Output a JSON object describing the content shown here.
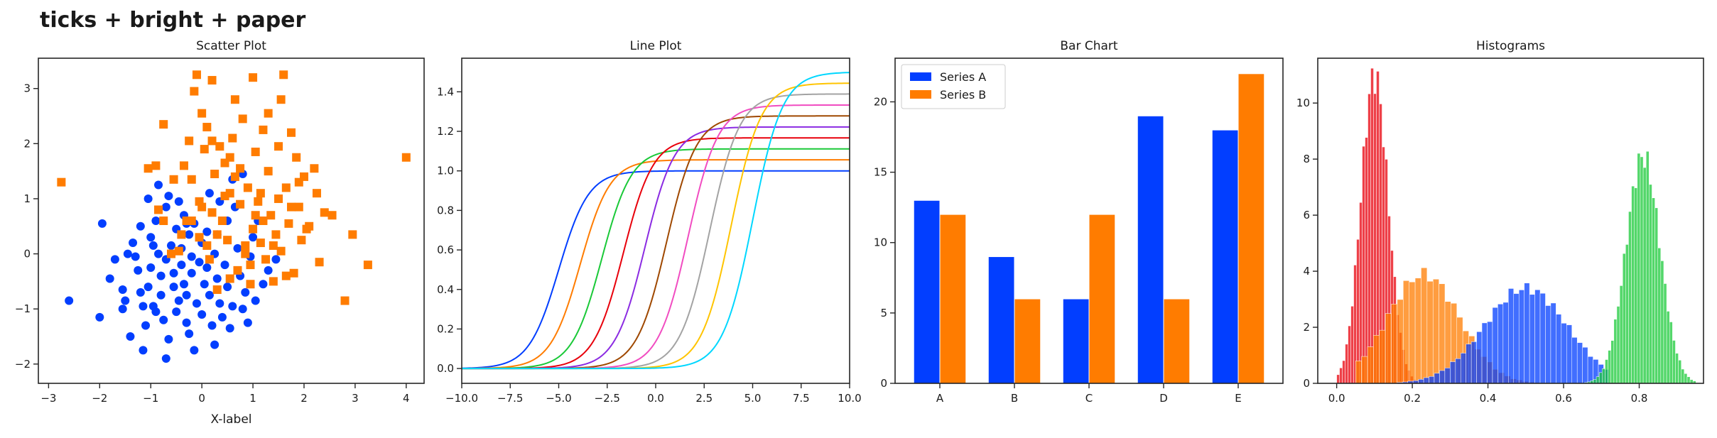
{
  "figure": {
    "suptitle": "ticks + bright + paper"
  },
  "colors": {
    "blue": "#023eff",
    "orange": "#ff7c00",
    "green": "#1ac938",
    "red": "#e8000b",
    "purple": "#8b2be2",
    "brown": "#9f4800",
    "pink": "#f14cc1",
    "gray": "#a3a3a3",
    "yellow": "#ffc400",
    "cyan": "#00d7ff"
  },
  "chart_data": [
    {
      "type": "scatter",
      "title": "Scatter Plot",
      "xlabel": "X-label",
      "ylabel": "",
      "xlim": [
        -3.2,
        4.35
      ],
      "ylim": [
        -2.35,
        3.55
      ],
      "xticks": [
        "−3",
        "−2",
        "−1",
        "0",
        "1",
        "2",
        "3",
        "4"
      ],
      "xtick_values": [
        -3,
        -2,
        -1,
        0,
        1,
        2,
        3,
        4
      ],
      "yticks": [
        "−2",
        "−1",
        "0",
        "1",
        "2",
        "3"
      ],
      "ytick_values": [
        -2,
        -1,
        0,
        1,
        2,
        3
      ],
      "series": [
        {
          "marker": "circle",
          "color": "#023eff",
          "points": [
            [
              -2.6,
              -0.85
            ],
            [
              -2.0,
              -1.15
            ],
            [
              -1.7,
              -0.1
            ],
            [
              -1.55,
              -0.65
            ],
            [
              -1.5,
              -0.85
            ],
            [
              -1.45,
              0.0
            ],
            [
              -1.4,
              -1.5
            ],
            [
              -1.35,
              0.2
            ],
            [
              -1.25,
              -0.3
            ],
            [
              -1.2,
              -0.7
            ],
            [
              -1.15,
              -1.75
            ],
            [
              -1.15,
              -0.95
            ],
            [
              -1.1,
              -1.3
            ],
            [
              -1.05,
              -0.6
            ],
            [
              -1.0,
              0.3
            ],
            [
              -1.0,
              -0.25
            ],
            [
              -0.95,
              -0.95
            ],
            [
              -0.9,
              -1.05
            ],
            [
              -0.9,
              0.6
            ],
            [
              -0.85,
              1.25
            ],
            [
              -0.85,
              0.0
            ],
            [
              -0.8,
              -0.4
            ],
            [
              -0.8,
              -0.75
            ],
            [
              -0.75,
              -1.2
            ],
            [
              -0.7,
              -1.9
            ],
            [
              -0.7,
              0.85
            ],
            [
              -0.7,
              -0.1
            ],
            [
              -0.65,
              1.05
            ],
            [
              -0.6,
              0.15
            ],
            [
              -0.55,
              -0.35
            ],
            [
              -0.55,
              -0.6
            ],
            [
              -0.5,
              0.45
            ],
            [
              -0.5,
              -1.05
            ],
            [
              -0.45,
              -0.85
            ],
            [
              -0.4,
              0.1
            ],
            [
              -0.4,
              -0.2
            ],
            [
              -0.35,
              -0.55
            ],
            [
              -0.35,
              0.7
            ],
            [
              -0.3,
              -1.25
            ],
            [
              -0.3,
              -0.75
            ],
            [
              -0.25,
              0.35
            ],
            [
              -0.2,
              -0.05
            ],
            [
              -0.2,
              -0.35
            ],
            [
              -0.15,
              -1.75
            ],
            [
              -0.1,
              -0.9
            ],
            [
              -0.05,
              -0.15
            ],
            [
              0.0,
              0.2
            ],
            [
              0.0,
              -1.1
            ],
            [
              0.05,
              -0.55
            ],
            [
              0.1,
              -0.25
            ],
            [
              0.1,
              0.4
            ],
            [
              0.15,
              -0.75
            ],
            [
              0.2,
              -1.3
            ],
            [
              0.25,
              0.0
            ],
            [
              0.3,
              0.35
            ],
            [
              0.3,
              -0.45
            ],
            [
              0.35,
              -0.9
            ],
            [
              0.4,
              -1.15
            ],
            [
              0.45,
              -0.2
            ],
            [
              0.5,
              0.6
            ],
            [
              0.5,
              -0.6
            ],
            [
              0.55,
              -1.35
            ],
            [
              0.6,
              -0.95
            ],
            [
              0.65,
              0.85
            ],
            [
              0.7,
              0.1
            ],
            [
              0.75,
              -0.4
            ],
            [
              0.8,
              1.45
            ],
            [
              0.85,
              -0.7
            ],
            [
              0.9,
              -1.25
            ],
            [
              0.95,
              -0.05
            ],
            [
              1.0,
              0.3
            ],
            [
              1.05,
              -0.85
            ],
            [
              1.1,
              0.6
            ],
            [
              1.2,
              -0.55
            ],
            [
              1.3,
              -0.3
            ],
            [
              -1.05,
              1.0
            ],
            [
              -0.15,
              0.55
            ],
            [
              0.35,
              0.95
            ],
            [
              0.6,
              1.35
            ],
            [
              -1.95,
              0.55
            ],
            [
              -1.3,
              -0.05
            ],
            [
              -1.8,
              -0.45
            ],
            [
              -0.65,
              -1.55
            ],
            [
              -0.25,
              -1.45
            ],
            [
              0.8,
              -1.0
            ],
            [
              1.45,
              -0.1
            ],
            [
              0.25,
              -1.65
            ],
            [
              -1.55,
              -1.0
            ],
            [
              -0.45,
              0.95
            ],
            [
              0.15,
              1.1
            ],
            [
              -1.2,
              0.5
            ],
            [
              -0.95,
              0.15
            ],
            [
              -0.3,
              0.55
            ]
          ]
        },
        {
          "marker": "square",
          "color": "#ff7c00",
          "points": [
            [
              -2.75,
              1.3
            ],
            [
              -1.05,
              1.55
            ],
            [
              -0.9,
              1.6
            ],
            [
              -0.85,
              0.8
            ],
            [
              -0.75,
              2.35
            ],
            [
              -0.75,
              0.6
            ],
            [
              -0.6,
              0.0
            ],
            [
              -0.55,
              1.35
            ],
            [
              -0.45,
              0.05
            ],
            [
              -0.4,
              0.35
            ],
            [
              -0.35,
              1.6
            ],
            [
              -0.3,
              0.6
            ],
            [
              -0.25,
              2.05
            ],
            [
              -0.2,
              1.35
            ],
            [
              -0.15,
              2.95
            ],
            [
              -0.1,
              3.25
            ],
            [
              -0.05,
              0.95
            ],
            [
              -0.05,
              0.3
            ],
            [
              0.0,
              2.55
            ],
            [
              0.05,
              1.9
            ],
            [
              0.1,
              2.3
            ],
            [
              0.1,
              0.15
            ],
            [
              0.15,
              -0.1
            ],
            [
              0.2,
              3.15
            ],
            [
              0.2,
              0.75
            ],
            [
              0.25,
              1.45
            ],
            [
              0.3,
              0.35
            ],
            [
              0.35,
              1.95
            ],
            [
              0.4,
              0.6
            ],
            [
              0.45,
              1.65
            ],
            [
              0.5,
              0.25
            ],
            [
              0.55,
              1.1
            ],
            [
              0.55,
              -0.45
            ],
            [
              0.6,
              2.1
            ],
            [
              0.65,
              1.4
            ],
            [
              0.7,
              -0.3
            ],
            [
              0.75,
              0.9
            ],
            [
              0.8,
              2.45
            ],
            [
              0.85,
              0.15
            ],
            [
              0.9,
              1.2
            ],
            [
              0.95,
              -0.55
            ],
            [
              1.0,
              0.45
            ],
            [
              1.0,
              3.2
            ],
            [
              1.05,
              1.85
            ],
            [
              1.1,
              0.95
            ],
            [
              1.15,
              0.2
            ],
            [
              1.2,
              2.25
            ],
            [
              1.25,
              -0.1
            ],
            [
              1.3,
              1.5
            ],
            [
              1.35,
              0.7
            ],
            [
              1.4,
              -0.5
            ],
            [
              1.45,
              0.35
            ],
            [
              1.5,
              1.95
            ],
            [
              1.55,
              2.8
            ],
            [
              1.55,
              0.05
            ],
            [
              1.6,
              3.25
            ],
            [
              1.65,
              1.2
            ],
            [
              1.7,
              0.55
            ],
            [
              1.75,
              2.2
            ],
            [
              1.8,
              -0.35
            ],
            [
              1.85,
              1.75
            ],
            [
              1.9,
              0.85
            ],
            [
              1.95,
              0.25
            ],
            [
              2.0,
              1.4
            ],
            [
              2.1,
              0.5
            ],
            [
              2.2,
              1.55
            ],
            [
              2.3,
              -0.15
            ],
            [
              2.4,
              0.75
            ],
            [
              2.55,
              0.7
            ],
            [
              2.8,
              -0.85
            ],
            [
              2.95,
              0.35
            ],
            [
              3.25,
              -0.2
            ],
            [
              4.0,
              1.75
            ],
            [
              0.85,
              0.0
            ],
            [
              1.3,
              2.55
            ],
            [
              0.65,
              2.8
            ],
            [
              1.2,
              0.6
            ],
            [
              1.75,
              0.85
            ],
            [
              0.45,
              1.05
            ],
            [
              0.3,
              -0.65
            ],
            [
              1.05,
              0.7
            ],
            [
              1.5,
              1.0
            ],
            [
              2.05,
              0.45
            ],
            [
              0.0,
              0.85
            ],
            [
              0.75,
              1.55
            ],
            [
              1.9,
              1.3
            ],
            [
              1.4,
              0.15
            ],
            [
              -0.2,
              0.6
            ],
            [
              0.95,
              -0.2
            ],
            [
              2.25,
              1.1
            ],
            [
              0.55,
              1.75
            ],
            [
              1.65,
              -0.4
            ],
            [
              1.15,
              1.1
            ],
            [
              0.2,
              2.05
            ]
          ]
        }
      ]
    },
    {
      "type": "line",
      "title": "Line Plot",
      "xlabel": "",
      "ylabel": "",
      "xlim": [
        -10,
        10
      ],
      "ylim": [
        -0.075,
        1.57
      ],
      "xticks": [
        "−10.0",
        "−7.5",
        "−5.0",
        "−2.5",
        "0.0",
        "2.5",
        "5.0",
        "7.5",
        "10.0"
      ],
      "xtick_values": [
        -10,
        -7.5,
        -5,
        -2.5,
        0,
        2.5,
        5,
        7.5,
        10
      ],
      "yticks": [
        "0.0",
        "0.2",
        "0.4",
        "0.6",
        "0.8",
        "1.0",
        "1.2",
        "1.4"
      ],
      "ytick_values": [
        0,
        0.2,
        0.4,
        0.6,
        0.8,
        1.0,
        1.2,
        1.4
      ],
      "series": [
        {
          "color": "#023eff",
          "center": -5.0,
          "amplitude": 1.0
        },
        {
          "color": "#ff7c00",
          "center": -3.89,
          "amplitude": 1.056
        },
        {
          "color": "#1ac938",
          "center": -2.78,
          "amplitude": 1.111
        },
        {
          "color": "#e8000b",
          "center": -1.67,
          "amplitude": 1.167
        },
        {
          "color": "#8b2be2",
          "center": -0.56,
          "amplitude": 1.222
        },
        {
          "color": "#9f4800",
          "center": 0.56,
          "amplitude": 1.278
        },
        {
          "color": "#f14cc1",
          "center": 1.67,
          "amplitude": 1.333
        },
        {
          "color": "#a3a3a3",
          "center": 2.78,
          "amplitude": 1.389
        },
        {
          "color": "#ffc400",
          "center": 3.89,
          "amplitude": 1.444
        },
        {
          "color": "#00d7ff",
          "center": 5.0,
          "amplitude": 1.5
        }
      ]
    },
    {
      "type": "bar",
      "title": "Bar Chart",
      "xlabel": "",
      "ylabel": "",
      "categories": [
        "A",
        "B",
        "C",
        "D",
        "E"
      ],
      "ylim": [
        0,
        23.1
      ],
      "yticks": [
        "0",
        "5",
        "10",
        "15",
        "20"
      ],
      "ytick_values": [
        0,
        5,
        10,
        15,
        20
      ],
      "legend_position": "top-left",
      "series": [
        {
          "name": "Series A",
          "color": "#023eff",
          "values": [
            13,
            9,
            6,
            19,
            18
          ]
        },
        {
          "name": "Series B",
          "color": "#ff7c00",
          "values": [
            12,
            6,
            12,
            6,
            22
          ]
        }
      ]
    },
    {
      "type": "histogram",
      "title": "Histograms",
      "xlabel": "",
      "ylabel": "",
      "xlim": [
        -0.05,
        0.97
      ],
      "ylim": [
        0,
        11.6
      ],
      "xticks": [
        "0.0",
        "0.2",
        "0.4",
        "0.6",
        "0.8"
      ],
      "xtick_values": [
        0,
        0.2,
        0.4,
        0.6,
        0.8
      ],
      "yticks": [
        "0",
        "2",
        "4",
        "6",
        "8",
        "10"
      ],
      "ytick_values": [
        0,
        2,
        4,
        6,
        8,
        10
      ],
      "series": [
        {
          "color": "#e8000b",
          "mean": 0.1,
          "sd": 0.036,
          "peak": 11.0,
          "range": [
            0.0,
            0.3
          ]
        },
        {
          "color": "#ff7c00",
          "mean": 0.23,
          "sd": 0.095,
          "peak": 3.9,
          "range": [
            0.05,
            0.68
          ]
        },
        {
          "color": "#023eff",
          "mean": 0.5,
          "sd": 0.11,
          "peak": 3.4,
          "range": [
            0.16,
            0.72
          ]
        },
        {
          "color": "#1ac938",
          "mean": 0.81,
          "sd": 0.045,
          "peak": 8.1,
          "range": [
            0.64,
            0.95
          ]
        }
      ]
    }
  ]
}
